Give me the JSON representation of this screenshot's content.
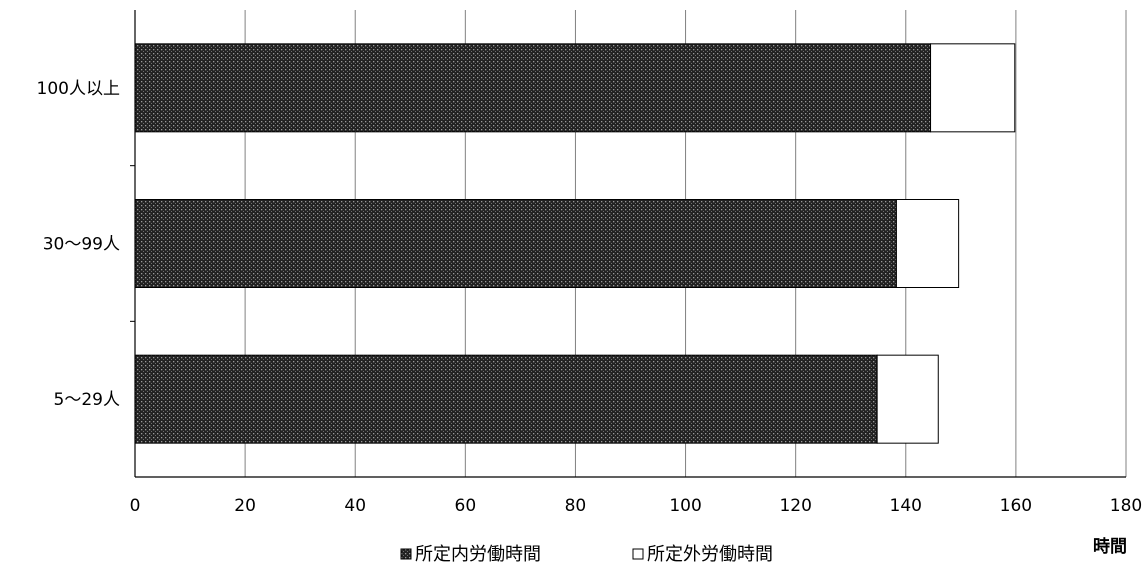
{
  "chart_data": {
    "type": "bar",
    "orientation": "horizontal",
    "stacked": true,
    "categories": [
      "100人以上",
      "30〜99人",
      "5〜29人"
    ],
    "series": [
      {
        "name": "所定内労働時間",
        "values": [
          144.5,
          138.3,
          134.8
        ],
        "color": "#333333",
        "pattern": "dotted"
      },
      {
        "name": "所定外労働時間",
        "values": [
          15.3,
          11.3,
          11.1
        ],
        "color": "#ffffff"
      }
    ],
    "x_ticks": [
      0,
      20,
      40,
      60,
      80,
      100,
      120,
      140,
      160,
      180
    ],
    "xlim": [
      0,
      180
    ],
    "xlabel": "時間",
    "grid": true,
    "legend_position": "bottom"
  }
}
